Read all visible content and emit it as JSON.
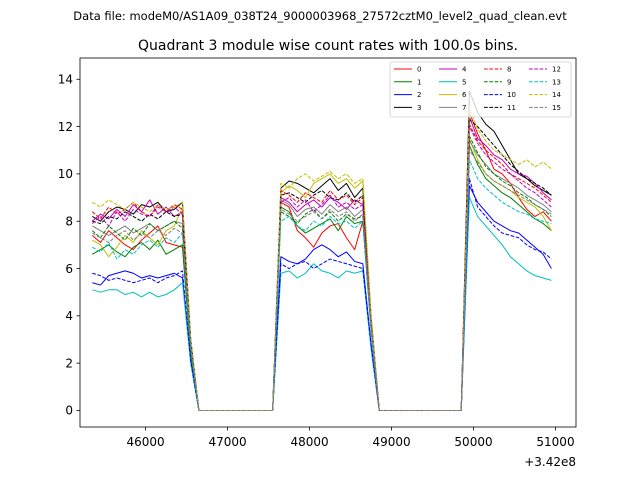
{
  "chart_data": {
    "type": "line",
    "suptitle": "Data file: modeM0/AS1A09_038T24_9000003968_27572cztM0_level2_quad_clean.evt",
    "title": "Quadrant 3 module wise count rates with 100.0s bins.",
    "xlabel": "",
    "ylabel": "",
    "x_offset_label": "+3.42e8",
    "xlim": [
      45200,
      51250
    ],
    "ylim": [
      -0.7,
      14.9
    ],
    "xticks": [
      46000,
      47000,
      48000,
      49000,
      50000,
      51000
    ],
    "xtick_labels": [
      "46000",
      "47000",
      "48000",
      "49000",
      "50000",
      "51000"
    ],
    "yticks": [
      0,
      2,
      4,
      6,
      8,
      10,
      12,
      14
    ],
    "ytick_labels": [
      "0",
      "2",
      "4",
      "6",
      "8",
      "10",
      "12",
      "14"
    ],
    "grid": false,
    "legend_position": "top-right",
    "legend_columns": 4,
    "x": [
      45350,
      45450,
      45550,
      45650,
      45750,
      45850,
      45950,
      46050,
      46150,
      46250,
      46350,
      46450,
      46550,
      46650,
      46750,
      46850,
      46950,
      47050,
      47150,
      47250,
      47350,
      47450,
      47550,
      47650,
      47750,
      47850,
      47950,
      48050,
      48150,
      48250,
      48350,
      48450,
      48550,
      48650,
      48750,
      48850,
      48950,
      49050,
      49150,
      49250,
      49350,
      49450,
      49550,
      49650,
      49750,
      49850,
      49950,
      50050,
      50150,
      50250,
      50350,
      50450,
      50550,
      50650,
      50750,
      50850,
      50950
    ],
    "series": [
      {
        "name": "0",
        "color": "#ff0000",
        "dash": "solid",
        "values": [
          7.4,
          7.1,
          7.6,
          7.3,
          7.0,
          6.8,
          7.2,
          7.5,
          7.8,
          7.1,
          7.0,
          6.9,
          2.5,
          0,
          0,
          0,
          0,
          0,
          0,
          0,
          0,
          0,
          0,
          8.8,
          8.6,
          7.6,
          7.3,
          6.9,
          7.5,
          7.8,
          7.9,
          7.3,
          6.8,
          8.0,
          3.5,
          0,
          0,
          0,
          0,
          0,
          0,
          0,
          0,
          0,
          0,
          0,
          12.6,
          11.7,
          11.0,
          10.2,
          10.0,
          9.6,
          9.0,
          8.5,
          8.2,
          8.4,
          8.0
        ]
      },
      {
        "name": "1",
        "color": "#008000",
        "dash": "solid",
        "values": [
          6.6,
          6.8,
          7.0,
          6.7,
          6.5,
          6.9,
          7.1,
          6.8,
          7.2,
          6.6,
          6.8,
          7.0,
          2.4,
          0,
          0,
          0,
          0,
          0,
          0,
          0,
          0,
          0,
          0,
          8.6,
          8.4,
          7.8,
          7.5,
          7.7,
          7.9,
          8.1,
          7.6,
          8.2,
          7.9,
          8.0,
          3.4,
          0,
          0,
          0,
          0,
          0,
          0,
          0,
          0,
          0,
          0,
          0,
          11.2,
          10.4,
          9.8,
          9.5,
          9.2,
          9.0,
          8.7,
          8.4,
          8.1,
          7.9,
          7.6
        ]
      },
      {
        "name": "2",
        "color": "#0000ff",
        "dash": "solid",
        "values": [
          5.4,
          5.3,
          5.7,
          5.8,
          5.9,
          5.8,
          5.6,
          5.7,
          5.6,
          5.7,
          5.8,
          5.6,
          2.1,
          0,
          0,
          0,
          0,
          0,
          0,
          0,
          0,
          0,
          0,
          6.5,
          6.3,
          6.2,
          6.4,
          6.8,
          7.0,
          6.8,
          6.5,
          6.7,
          6.3,
          6.2,
          2.8,
          0,
          0,
          0,
          0,
          0,
          0,
          0,
          0,
          0,
          0,
          0,
          9.5,
          8.8,
          8.4,
          8.0,
          7.8,
          7.6,
          7.5,
          7.2,
          6.9,
          6.6,
          6.0
        ]
      },
      {
        "name": "3",
        "color": "#000000",
        "dash": "solid",
        "values": [
          8.2,
          8.0,
          8.4,
          8.6,
          8.5,
          8.3,
          8.7,
          8.6,
          8.8,
          8.4,
          8.5,
          8.8,
          3.0,
          0,
          0,
          0,
          0,
          0,
          0,
          0,
          0,
          0,
          0,
          9.4,
          9.7,
          9.6,
          9.4,
          9.2,
          9.5,
          9.8,
          9.3,
          9.6,
          9.0,
          9.4,
          4.0,
          0,
          0,
          0,
          0,
          0,
          0,
          0,
          0,
          0,
          0,
          0,
          13.5,
          12.6,
          12.1,
          11.8,
          11.2,
          10.6,
          10.0,
          9.8,
          9.5,
          9.3,
          9.1
        ]
      },
      {
        "name": "4",
        "color": "#bf00bf",
        "dash": "solid",
        "values": [
          8.0,
          8.3,
          8.1,
          8.5,
          8.2,
          8.7,
          8.4,
          8.9,
          8.3,
          8.6,
          8.2,
          8.4,
          3.0,
          0,
          0,
          0,
          0,
          0,
          0,
          0,
          0,
          0,
          0,
          9.0,
          8.8,
          8.4,
          8.7,
          8.9,
          8.6,
          9.0,
          8.8,
          8.5,
          8.9,
          8.7,
          3.8,
          0,
          0,
          0,
          0,
          0,
          0,
          0,
          0,
          0,
          0,
          0,
          12.4,
          11.5,
          11.2,
          10.8,
          10.6,
          10.2,
          10.0,
          9.9,
          9.6,
          9.2,
          8.9
        ]
      },
      {
        "name": "5",
        "color": "#00bfbf",
        "dash": "solid",
        "values": [
          5.1,
          5.0,
          5.1,
          5.1,
          4.9,
          5.0,
          4.8,
          5.0,
          4.8,
          4.9,
          5.1,
          5.4,
          2.0,
          0,
          0,
          0,
          0,
          0,
          0,
          0,
          0,
          0,
          0,
          5.8,
          5.9,
          5.6,
          5.8,
          6.2,
          5.9,
          5.8,
          5.6,
          5.9,
          5.8,
          5.9,
          2.6,
          0,
          0,
          0,
          0,
          0,
          0,
          0,
          0,
          0,
          0,
          0,
          9.0,
          8.2,
          7.8,
          7.4,
          7.0,
          6.5,
          6.2,
          5.9,
          5.7,
          5.6,
          5.5
        ]
      },
      {
        "name": "6",
        "color": "#bfbf00",
        "dash": "solid",
        "values": [
          7.2,
          7.0,
          6.5,
          6.9,
          7.4,
          7.1,
          7.6,
          7.3,
          7.0,
          7.6,
          7.8,
          8.6,
          2.9,
          0,
          0,
          0,
          0,
          0,
          0,
          0,
          0,
          0,
          0,
          9.2,
          9.5,
          9.3,
          9.0,
          9.6,
          9.8,
          10.0,
          9.6,
          9.8,
          9.4,
          9.7,
          4.0,
          0,
          0,
          0,
          0,
          0,
          0,
          0,
          0,
          0,
          0,
          0,
          11.5,
          10.6,
          10.0,
          9.7,
          9.5,
          9.3,
          9.0,
          8.8,
          8.6,
          8.2,
          7.6
        ]
      },
      {
        "name": "7",
        "color": "#808080",
        "dash": "solid",
        "values": [
          7.8,
          7.6,
          7.4,
          7.6,
          7.8,
          7.5,
          7.7,
          7.9,
          7.6,
          7.8,
          8.0,
          7.9,
          2.8,
          0,
          0,
          0,
          0,
          0,
          0,
          0,
          0,
          0,
          0,
          8.9,
          8.7,
          8.2,
          8.5,
          8.6,
          8.3,
          8.7,
          8.4,
          8.6,
          8.2,
          8.5,
          3.6,
          0,
          0,
          0,
          0,
          0,
          0,
          0,
          0,
          0,
          0,
          0,
          11.4,
          10.8,
          10.4,
          10.0,
          9.8,
          9.6,
          9.4,
          9.1,
          8.9,
          8.7,
          8.4
        ]
      },
      {
        "name": "8",
        "color": "#ff0000",
        "dash": "dashed",
        "values": [
          8.4,
          8.1,
          8.6,
          8.3,
          8.5,
          8.8,
          8.4,
          8.2,
          8.6,
          8.4,
          8.7,
          8.5,
          3.0,
          0,
          0,
          0,
          0,
          0,
          0,
          0,
          0,
          0,
          0,
          9.3,
          9.1,
          8.8,
          9.2,
          9.0,
          8.8,
          9.3,
          8.9,
          9.1,
          8.7,
          9.0,
          3.9,
          0,
          0,
          0,
          0,
          0,
          0,
          0,
          0,
          0,
          0,
          0,
          12.1,
          11.4,
          11.0,
          10.7,
          10.4,
          10.0,
          9.8,
          9.6,
          9.4,
          9.1,
          8.8
        ]
      },
      {
        "name": "9",
        "color": "#008000",
        "dash": "dashed",
        "values": [
          7.6,
          7.3,
          7.8,
          7.5,
          7.2,
          7.7,
          7.4,
          7.9,
          7.6,
          7.8,
          8.0,
          7.7,
          2.7,
          0,
          0,
          0,
          0,
          0,
          0,
          0,
          0,
          0,
          0,
          8.4,
          8.2,
          7.9,
          8.3,
          8.5,
          8.1,
          8.4,
          8.0,
          8.3,
          8.1,
          8.2,
          3.6,
          0,
          0,
          0,
          0,
          0,
          0,
          0,
          0,
          0,
          0,
          0,
          11.6,
          10.9,
          10.3,
          10.0,
          9.7,
          9.5,
          9.2,
          9.0,
          8.7,
          8.5,
          8.2
        ]
      },
      {
        "name": "10",
        "color": "#0000ff",
        "dash": "dashed",
        "values": [
          5.8,
          5.7,
          5.5,
          5.6,
          5.5,
          5.4,
          5.5,
          5.6,
          5.4,
          5.6,
          5.7,
          5.9,
          2.1,
          0,
          0,
          0,
          0,
          0,
          0,
          0,
          0,
          0,
          0,
          6.2,
          6.0,
          6.2,
          6.3,
          6.0,
          6.2,
          6.4,
          6.3,
          6.2,
          6.1,
          6.0,
          2.8,
          0,
          0,
          0,
          0,
          0,
          0,
          0,
          0,
          0,
          0,
          0,
          9.8,
          8.6,
          8.2,
          7.8,
          7.5,
          7.4,
          7.3,
          7.0,
          6.8,
          6.7,
          6.4
        ]
      },
      {
        "name": "11",
        "color": "#000000",
        "dash": "dashed",
        "values": [
          8.0,
          7.9,
          8.2,
          8.1,
          8.4,
          8.2,
          8.0,
          8.3,
          8.1,
          8.4,
          8.2,
          8.3,
          2.9,
          0,
          0,
          0,
          0,
          0,
          0,
          0,
          0,
          0,
          0,
          9.1,
          9.2,
          9.0,
          8.8,
          9.1,
          9.3,
          9.0,
          8.9,
          9.2,
          8.8,
          9.1,
          3.9,
          0,
          0,
          0,
          0,
          0,
          0,
          0,
          0,
          0,
          0,
          0,
          12.3,
          12.0,
          11.6,
          11.2,
          10.8,
          10.4,
          10.1,
          9.8,
          9.6,
          9.4,
          9.1
        ]
      },
      {
        "name": "12",
        "color": "#bf00bf",
        "dash": "dashed",
        "values": [
          7.9,
          8.2,
          7.8,
          8.4,
          8.0,
          8.5,
          8.3,
          8.2,
          8.7,
          8.4,
          8.6,
          8.3,
          3.0,
          0,
          0,
          0,
          0,
          0,
          0,
          0,
          0,
          0,
          0,
          8.8,
          9.0,
          8.6,
          8.9,
          8.4,
          8.7,
          9.1,
          8.6,
          8.8,
          8.5,
          8.7,
          3.7,
          0,
          0,
          0,
          0,
          0,
          0,
          0,
          0,
          0,
          0,
          0,
          12.0,
          11.3,
          10.8,
          10.5,
          10.2,
          10.0,
          9.7,
          9.4,
          9.2,
          8.9,
          8.6
        ]
      },
      {
        "name": "13",
        "color": "#00bfbf",
        "dash": "dashed",
        "values": [
          6.9,
          6.7,
          7.1,
          6.4,
          6.8,
          6.6,
          7.0,
          7.2,
          6.9,
          7.3,
          7.1,
          7.5,
          2.6,
          0,
          0,
          0,
          0,
          0,
          0,
          0,
          0,
          0,
          0,
          8.0,
          8.2,
          7.8,
          7.6,
          8.0,
          7.8,
          8.2,
          7.9,
          8.0,
          7.7,
          8.0,
          3.4,
          0,
          0,
          0,
          0,
          0,
          0,
          0,
          0,
          0,
          0,
          0,
          10.6,
          9.8,
          9.4,
          9.1,
          8.8,
          8.6,
          8.4,
          8.3,
          8.1,
          8.0,
          7.9
        ]
      },
      {
        "name": "14",
        "color": "#bfbf00",
        "dash": "dashed",
        "values": [
          8.8,
          8.6,
          8.9,
          8.7,
          8.5,
          8.8,
          8.6,
          8.4,
          8.7,
          8.5,
          8.6,
          8.8,
          3.1,
          0,
          0,
          0,
          0,
          0,
          0,
          0,
          0,
          0,
          0,
          9.6,
          9.4,
          9.8,
          10.0,
          9.7,
          9.9,
          10.1,
          9.8,
          10.0,
          9.6,
          9.8,
          4.1,
          0,
          0,
          0,
          0,
          0,
          0,
          0,
          0,
          0,
          0,
          0,
          12.8,
          11.9,
          11.4,
          11.0,
          10.8,
          10.6,
          10.4,
          10.6,
          10.3,
          10.5,
          10.2
        ]
      },
      {
        "name": "15",
        "color": "#808080",
        "dash": "dashed",
        "values": [
          7.5,
          7.3,
          7.1,
          7.4,
          7.6,
          7.2,
          7.5,
          7.3,
          7.6,
          7.4,
          7.7,
          7.5,
          2.7,
          0,
          0,
          0,
          0,
          0,
          0,
          0,
          0,
          0,
          0,
          8.5,
          8.3,
          8.0,
          8.2,
          8.4,
          8.1,
          8.5,
          8.2,
          8.4,
          8.0,
          8.3,
          3.5,
          0,
          0,
          0,
          0,
          0,
          0,
          0,
          0,
          0,
          0,
          0,
          11.0,
          10.5,
          10.0,
          9.7,
          9.5,
          9.3,
          9.1,
          8.9,
          8.7,
          8.5,
          8.3
        ]
      }
    ]
  }
}
